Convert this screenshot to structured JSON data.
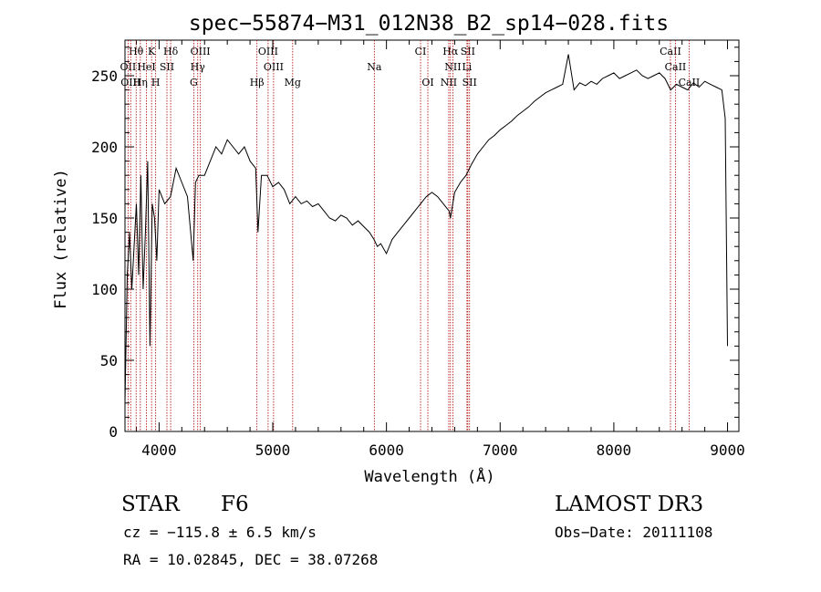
{
  "chart_data": {
    "type": "line",
    "title": "spec−55874−M31_012N38_B2_sp14−028.fits",
    "xlabel": "Wavelength (Å)",
    "ylabel": "Flux (relative)",
    "xlim": [
      3700,
      9100
    ],
    "ylim": [
      0,
      275
    ],
    "xticks": [
      4000,
      5000,
      6000,
      7000,
      8000,
      9000
    ],
    "yticks": [
      0,
      50,
      100,
      150,
      200,
      250
    ],
    "series": [
      {
        "points": [
          [
            3700,
            20
          ],
          [
            3720,
            110
          ],
          [
            3740,
            140
          ],
          [
            3760,
            100
          ],
          [
            3780,
            130
          ],
          [
            3800,
            160
          ],
          [
            3820,
            110
          ],
          [
            3840,
            180
          ],
          [
            3860,
            100
          ],
          [
            3880,
            140
          ],
          [
            3900,
            190
          ],
          [
            3920,
            60
          ],
          [
            3940,
            160
          ],
          [
            3960,
            150
          ],
          [
            3980,
            120
          ],
          [
            4000,
            170
          ],
          [
            4050,
            160
          ],
          [
            4100,
            165
          ],
          [
            4150,
            185
          ],
          [
            4200,
            175
          ],
          [
            4250,
            165
          ],
          [
            4300,
            120
          ],
          [
            4320,
            175
          ],
          [
            4350,
            180
          ],
          [
            4400,
            180
          ],
          [
            4450,
            190
          ],
          [
            4500,
            200
          ],
          [
            4550,
            195
          ],
          [
            4600,
            205
          ],
          [
            4650,
            200
          ],
          [
            4700,
            195
          ],
          [
            4750,
            200
          ],
          [
            4800,
            190
          ],
          [
            4850,
            185
          ],
          [
            4870,
            140
          ],
          [
            4900,
            180
          ],
          [
            4950,
            180
          ],
          [
            5000,
            172
          ],
          [
            5050,
            175
          ],
          [
            5100,
            170
          ],
          [
            5150,
            160
          ],
          [
            5200,
            165
          ],
          [
            5250,
            160
          ],
          [
            5300,
            162
          ],
          [
            5350,
            158
          ],
          [
            5400,
            160
          ],
          [
            5450,
            155
          ],
          [
            5500,
            150
          ],
          [
            5550,
            148
          ],
          [
            5600,
            152
          ],
          [
            5650,
            150
          ],
          [
            5700,
            145
          ],
          [
            5750,
            148
          ],
          [
            5800,
            144
          ],
          [
            5850,
            140
          ],
          [
            5890,
            135
          ],
          [
            5920,
            130
          ],
          [
            5950,
            132
          ],
          [
            6000,
            125
          ],
          [
            6050,
            135
          ],
          [
            6100,
            140
          ],
          [
            6150,
            145
          ],
          [
            6200,
            150
          ],
          [
            6250,
            155
          ],
          [
            6300,
            160
          ],
          [
            6350,
            165
          ],
          [
            6400,
            168
          ],
          [
            6450,
            165
          ],
          [
            6500,
            160
          ],
          [
            6550,
            155
          ],
          [
            6563,
            150
          ],
          [
            6600,
            168
          ],
          [
            6650,
            175
          ],
          [
            6700,
            180
          ],
          [
            6750,
            188
          ],
          [
            6800,
            195
          ],
          [
            6850,
            200
          ],
          [
            6900,
            205
          ],
          [
            6950,
            208
          ],
          [
            7000,
            212
          ],
          [
            7050,
            215
          ],
          [
            7100,
            218
          ],
          [
            7150,
            222
          ],
          [
            7200,
            225
          ],
          [
            7250,
            228
          ],
          [
            7300,
            232
          ],
          [
            7350,
            235
          ],
          [
            7400,
            238
          ],
          [
            7450,
            240
          ],
          [
            7500,
            242
          ],
          [
            7550,
            244
          ],
          [
            7600,
            265
          ],
          [
            7650,
            240
          ],
          [
            7700,
            245
          ],
          [
            7750,
            243
          ],
          [
            7800,
            246
          ],
          [
            7850,
            244
          ],
          [
            7900,
            248
          ],
          [
            7950,
            250
          ],
          [
            8000,
            252
          ],
          [
            8050,
            248
          ],
          [
            8100,
            250
          ],
          [
            8150,
            252
          ],
          [
            8200,
            254
          ],
          [
            8250,
            250
          ],
          [
            8300,
            248
          ],
          [
            8350,
            250
          ],
          [
            8400,
            252
          ],
          [
            8450,
            248
          ],
          [
            8500,
            240
          ],
          [
            8550,
            244
          ],
          [
            8600,
            242
          ],
          [
            8650,
            240
          ],
          [
            8700,
            245
          ],
          [
            8750,
            242
          ],
          [
            8800,
            246
          ],
          [
            8850,
            244
          ],
          [
            8900,
            242
          ],
          [
            8950,
            240
          ],
          [
            8980,
            220
          ],
          [
            9000,
            60
          ]
        ]
      }
    ],
    "lines": [
      {
        "label": "Hθ",
        "x": 3798,
        "row": 1
      },
      {
        "label": "K",
        "x": 3934,
        "row": 1
      },
      {
        "label": "Hδ",
        "x": 4102,
        "row": 1
      },
      {
        "label": "OIII",
        "x": 4363,
        "row": 1
      },
      {
        "label": "OIII",
        "x": 4959,
        "row": 1
      },
      {
        "label": "CI",
        "x": 6300,
        "row": 1
      },
      {
        "label": "Hα",
        "x": 6563,
        "row": 1
      },
      {
        "label": "SII",
        "x": 6716,
        "row": 1
      },
      {
        "label": "CaII",
        "x": 8498,
        "row": 1
      },
      {
        "label": "OII",
        "x": 3727,
        "row": 2
      },
      {
        "label": "HeI",
        "x": 3889,
        "row": 2
      },
      {
        "label": "SII",
        "x": 4069,
        "row": 2
      },
      {
        "label": "Hγ",
        "x": 4340,
        "row": 2
      },
      {
        "label": "OIII",
        "x": 5007,
        "row": 2
      },
      {
        "label": "Na",
        "x": 5893,
        "row": 2
      },
      {
        "label": "NII",
        "x": 6584,
        "row": 2
      },
      {
        "label": "Li",
        "x": 6708,
        "row": 2
      },
      {
        "label": "CaII",
        "x": 8542,
        "row": 2
      },
      {
        "label": "OIII",
        "x": 3750,
        "row": 3
      },
      {
        "label": "Hη",
        "x": 3835,
        "row": 3
      },
      {
        "label": "H",
        "x": 3970,
        "row": 3
      },
      {
        "label": "G",
        "x": 4305,
        "row": 3
      },
      {
        "label": "Hβ",
        "x": 4861,
        "row": 3
      },
      {
        "label": "Mg",
        "x": 5175,
        "row": 3
      },
      {
        "label": "OI",
        "x": 6364,
        "row": 3
      },
      {
        "label": "NII",
        "x": 6548,
        "row": 3
      },
      {
        "label": "SII",
        "x": 6731,
        "row": 3
      },
      {
        "label": "CaII",
        "x": 8662,
        "row": 3
      }
    ],
    "grid": false
  },
  "info": {
    "class": "STAR",
    "subclass": "F6",
    "survey": "LAMOST DR3",
    "cz": "cz = −115.8 ± 6.5 km/s",
    "obsdate": "Obs−Date: 20111108",
    "radec": "RA =  10.02845, DEC =  38.07268"
  }
}
